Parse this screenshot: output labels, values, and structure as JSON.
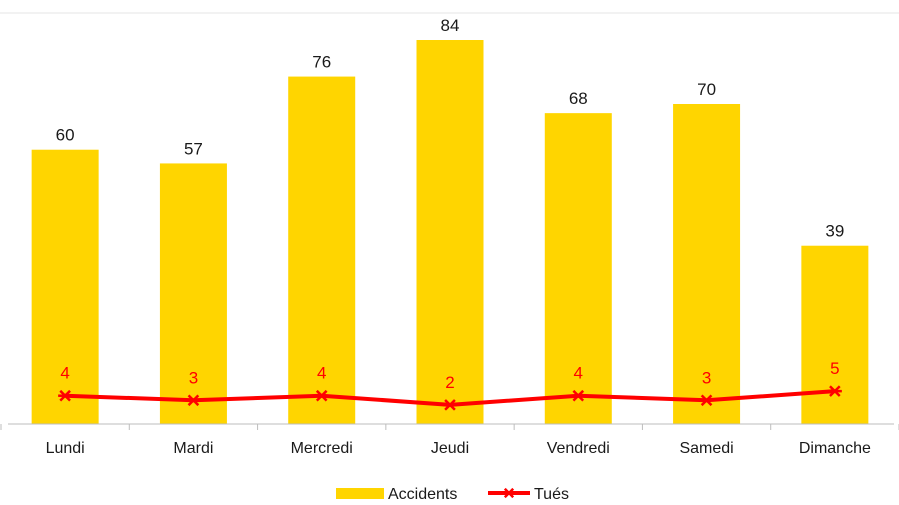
{
  "chart_data": {
    "type": "bar",
    "categories": [
      "Lundi",
      "Mardi",
      "Mercredi",
      "Jeudi",
      "Vendredi",
      "Samedi",
      "Dimanche"
    ],
    "series": [
      {
        "name": "Accidents",
        "type": "bar",
        "color": "#FFD500",
        "values": [
          60,
          57,
          76,
          84,
          68,
          70,
          39
        ]
      },
      {
        "name": "Tués",
        "type": "line",
        "color": "#FF0000",
        "marker": "asterisk",
        "values": [
          4,
          3,
          4,
          2,
          4,
          3,
          5
        ]
      }
    ],
    "ylim": [
      0,
      84
    ],
    "grid": false,
    "legend": "bottom-center",
    "xlabel": "",
    "ylabel": ""
  }
}
